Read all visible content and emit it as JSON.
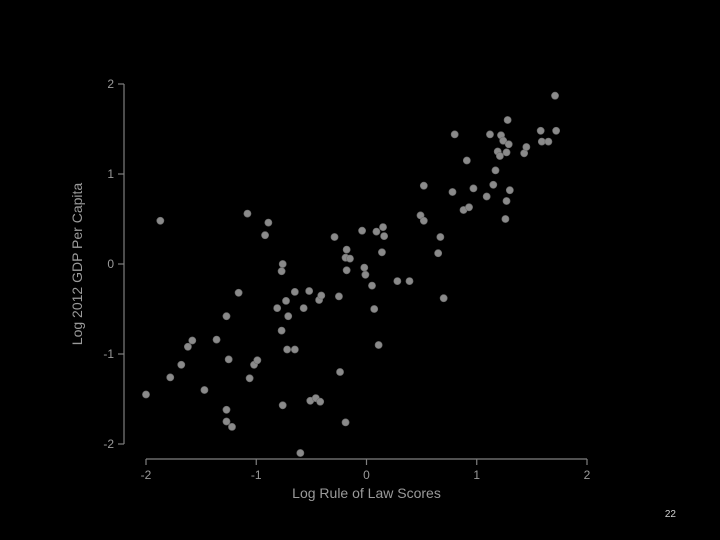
{
  "slide": {
    "number": "22"
  },
  "chart_data": {
    "type": "scatter",
    "title": "",
    "xlabel": "Log Rule of Law Scores",
    "ylabel": "Log 2012 GDP Per Capita",
    "xlim": [
      -2,
      2
    ],
    "ylim": [
      -2,
      2
    ],
    "xticks": [
      -2,
      -1,
      0,
      1,
      2
    ],
    "yticks": [
      -2,
      -1,
      0,
      1,
      2
    ],
    "grid": false,
    "point_color": "#8a8a8a",
    "background": "#000000",
    "points": [
      [
        -2.0,
        -1.45
      ],
      [
        -1.87,
        0.48
      ],
      [
        -1.78,
        -1.26
      ],
      [
        -1.68,
        -1.12
      ],
      [
        -1.62,
        -0.92
      ],
      [
        -1.58,
        -0.85
      ],
      [
        -1.47,
        -1.4
      ],
      [
        -1.36,
        -0.84
      ],
      [
        -1.27,
        -0.58
      ],
      [
        -1.27,
        -1.62
      ],
      [
        -1.27,
        -1.75
      ],
      [
        -1.25,
        -1.06
      ],
      [
        -1.22,
        -1.81
      ],
      [
        -1.16,
        -0.32
      ],
      [
        -1.08,
        0.56
      ],
      [
        -1.06,
        -1.27
      ],
      [
        -1.02,
        -1.12
      ],
      [
        -0.99,
        -1.07
      ],
      [
        -0.92,
        0.32
      ],
      [
        -0.89,
        0.46
      ],
      [
        -0.81,
        -0.49
      ],
      [
        -0.77,
        -0.08
      ],
      [
        -0.76,
        0.0
      ],
      [
        -0.77,
        -0.74
      ],
      [
        -0.76,
        -1.57
      ],
      [
        -0.73,
        -0.41
      ],
      [
        -0.72,
        -0.95
      ],
      [
        -0.71,
        -0.58
      ],
      [
        -0.65,
        -0.95
      ],
      [
        -0.65,
        -0.31
      ],
      [
        -0.6,
        -2.1
      ],
      [
        -0.57,
        -0.49
      ],
      [
        -0.52,
        -0.3
      ],
      [
        -0.51,
        -1.52
      ],
      [
        -0.46,
        -1.49
      ],
      [
        -0.43,
        -0.4
      ],
      [
        -0.42,
        -1.53
      ],
      [
        -0.41,
        -0.35
      ],
      [
        -0.29,
        0.3
      ],
      [
        -0.25,
        -0.36
      ],
      [
        -0.24,
        -1.2
      ],
      [
        -0.19,
        0.07
      ],
      [
        -0.18,
        -0.07
      ],
      [
        -0.18,
        0.16
      ],
      [
        -0.19,
        -1.76
      ],
      [
        -0.15,
        0.06
      ],
      [
        -0.04,
        0.37
      ],
      [
        -0.02,
        -0.04
      ],
      [
        -0.01,
        -0.12
      ],
      [
        0.05,
        -0.24
      ],
      [
        0.07,
        -0.5
      ],
      [
        0.09,
        0.36
      ],
      [
        0.11,
        -0.9
      ],
      [
        0.14,
        0.13
      ],
      [
        0.16,
        0.31
      ],
      [
        0.15,
        0.41
      ],
      [
        0.28,
        -0.19
      ],
      [
        0.39,
        -0.19
      ],
      [
        0.49,
        0.54
      ],
      [
        0.52,
        0.87
      ],
      [
        0.52,
        0.48
      ],
      [
        0.65,
        0.12
      ],
      [
        0.67,
        0.3
      ],
      [
        0.7,
        -0.38
      ],
      [
        0.78,
        0.8
      ],
      [
        0.8,
        1.44
      ],
      [
        0.88,
        0.6
      ],
      [
        0.91,
        1.15
      ],
      [
        0.93,
        0.63
      ],
      [
        0.97,
        0.84
      ],
      [
        1.09,
        0.75
      ],
      [
        1.12,
        1.44
      ],
      [
        1.15,
        0.88
      ],
      [
        1.17,
        1.04
      ],
      [
        1.19,
        1.25
      ],
      [
        1.21,
        1.2
      ],
      [
        1.22,
        1.43
      ],
      [
        1.24,
        1.37
      ],
      [
        1.27,
        0.7
      ],
      [
        1.26,
        0.5
      ],
      [
        1.27,
        1.24
      ],
      [
        1.28,
        1.6
      ],
      [
        1.29,
        1.33
      ],
      [
        1.3,
        0.82
      ],
      [
        1.43,
        1.23
      ],
      [
        1.45,
        1.3
      ],
      [
        1.58,
        1.48
      ],
      [
        1.59,
        1.36
      ],
      [
        1.65,
        1.36
      ],
      [
        1.71,
        1.87
      ],
      [
        1.72,
        1.48
      ]
    ]
  }
}
